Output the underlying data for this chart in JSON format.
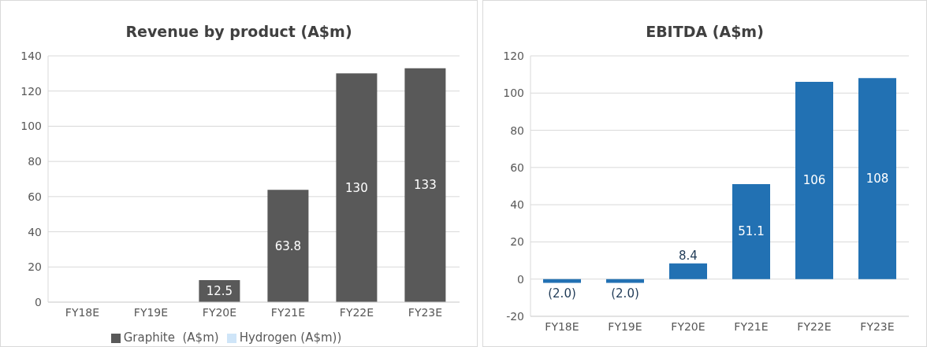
{
  "chart_data": [
    {
      "type": "bar",
      "title": "Revenue by product (A$m)",
      "categories": [
        "FY18E",
        "FY19E",
        "FY20E",
        "FY21E",
        "FY22E",
        "FY23E"
      ],
      "stacked": true,
      "series": [
        {
          "name": "Graphite  (A$m)",
          "color": "#595959",
          "values": [
            0,
            0,
            12.5,
            63.8,
            130,
            133
          ],
          "value_labels": [
            null,
            null,
            "12.5",
            "63.8",
            "130",
            "133"
          ]
        },
        {
          "name": "Hydrogen (A$m))",
          "color": "#cfe5f8",
          "values": [
            0,
            0,
            0,
            0,
            0,
            0
          ]
        }
      ],
      "ylim": [
        0,
        140
      ],
      "yticks": [
        0,
        20,
        40,
        60,
        80,
        100,
        120,
        140
      ],
      "grid": "y",
      "legend": "bottom"
    },
    {
      "type": "bar",
      "title": "EBITDA (A$m)",
      "categories": [
        "FY18E",
        "FY19E",
        "FY20E",
        "FY21E",
        "FY22E",
        "FY23E"
      ],
      "series": [
        {
          "color": "#2271b3",
          "values": [
            -2.0,
            -2.0,
            8.4,
            51.1,
            106,
            108
          ],
          "value_labels": [
            "(2.0)",
            "(2.0)",
            "8.4",
            "51.1",
            "106",
            "108"
          ]
        }
      ],
      "ylim": [
        -20,
        120
      ],
      "yticks": [
        -20,
        0,
        20,
        40,
        60,
        80,
        100,
        120
      ],
      "grid": "y"
    }
  ]
}
